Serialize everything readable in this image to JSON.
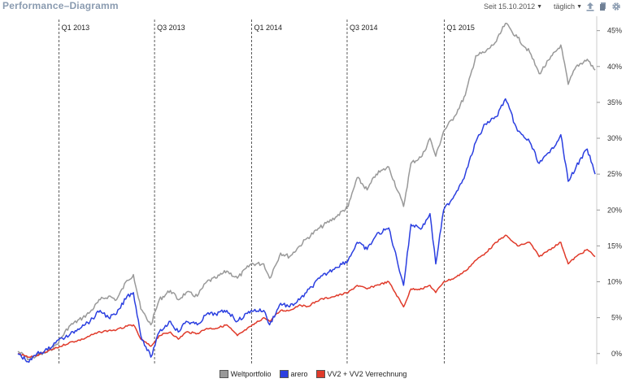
{
  "header": {
    "title": "Performance–Diagramm",
    "since_label": "Seit 15.10.2012",
    "interval_label": "täglich",
    "icons": [
      "upload-icon",
      "document-icon",
      "gear-icon"
    ]
  },
  "colors": {
    "weltportfolio": "#999999",
    "arero": "#2b3fe0",
    "vv2": "#e03a2a",
    "grid": "#333333",
    "axis": "#cccccc"
  },
  "chart_data": {
    "type": "line",
    "title": "",
    "xlabel": "",
    "ylabel": "",
    "x_range": [
      "2012-10-15",
      "2015-10-14"
    ],
    "ylim": [
      -1.5,
      47
    ],
    "y_ticks": [
      0,
      5,
      10,
      15,
      20,
      25,
      30,
      35,
      40,
      45
    ],
    "y_tick_labels": [
      "0%",
      "5%",
      "10%",
      "15%",
      "20%",
      "25%",
      "30%",
      "35%",
      "40%",
      "45%"
    ],
    "y_axis_position": "right",
    "quarter_markers": [
      {
        "label": "Q1 2013",
        "date": "2013-01-01"
      },
      {
        "label": "Q3 2013",
        "date": "2013-07-01"
      },
      {
        "label": "Q1 2014",
        "date": "2014-01-01"
      },
      {
        "label": "Q3 2014",
        "date": "2014-07-01"
      },
      {
        "label": "Q1 2015",
        "date": "2015-01-01"
      }
    ],
    "legend_position": "bottom-center",
    "series": [
      {
        "name": "Weltportfolio",
        "x": [
          "2012-10-15",
          "2012-11-05",
          "2012-11-20",
          "2012-12-10",
          "2012-12-28",
          "2013-01-20",
          "2013-02-15",
          "2013-03-01",
          "2013-03-20",
          "2013-04-05",
          "2013-04-20",
          "2013-05-10",
          "2013-05-22",
          "2013-06-05",
          "2013-06-24",
          "2013-07-10",
          "2013-07-31",
          "2013-08-15",
          "2013-08-30",
          "2013-09-20",
          "2013-10-08",
          "2013-10-25",
          "2013-11-15",
          "2013-12-05",
          "2013-12-31",
          "2014-01-24",
          "2014-02-04",
          "2014-02-25",
          "2014-03-14",
          "2014-04-02",
          "2014-04-15",
          "2014-05-10",
          "2014-06-09",
          "2014-07-03",
          "2014-07-20",
          "2014-08-08",
          "2014-08-25",
          "2014-09-18",
          "2014-10-16",
          "2014-10-30",
          "2014-11-20",
          "2014-12-05",
          "2014-12-16",
          "2014-12-31",
          "2015-01-20",
          "2015-02-10",
          "2015-03-02",
          "2015-03-20",
          "2015-04-10",
          "2015-04-27",
          "2015-05-20",
          "2015-06-12",
          "2015-06-30",
          "2015-07-20",
          "2015-08-10",
          "2015-08-24",
          "2015-09-08",
          "2015-09-29",
          "2015-10-14"
        ],
        "values": [
          0.3,
          -0.8,
          -0.3,
          0.2,
          1.3,
          3.8,
          5.0,
          5.8,
          7.5,
          8.0,
          7.5,
          10.2,
          11.0,
          6.2,
          4.0,
          7.5,
          8.8,
          7.5,
          8.5,
          8.0,
          10.0,
          10.5,
          11.5,
          10.5,
          12.5,
          12.5,
          10.5,
          14.0,
          13.5,
          15.0,
          16.0,
          17.5,
          19.0,
          20.5,
          24.5,
          22.8,
          25.0,
          26.0,
          20.5,
          26.5,
          27.5,
          30.0,
          27.5,
          31.0,
          33.0,
          36.0,
          41.5,
          42.0,
          43.5,
          46.0,
          44.0,
          42.0,
          39.0,
          41.0,
          43.0,
          37.5,
          40.0,
          41.0,
          39.5
        ]
      },
      {
        "name": "arero",
        "x": [
          "2012-10-15",
          "2012-11-05",
          "2012-11-20",
          "2012-12-10",
          "2012-12-28",
          "2013-01-20",
          "2013-02-15",
          "2013-03-01",
          "2013-03-20",
          "2013-04-05",
          "2013-04-20",
          "2013-05-10",
          "2013-05-22",
          "2013-06-05",
          "2013-06-24",
          "2013-07-10",
          "2013-07-31",
          "2013-08-15",
          "2013-08-30",
          "2013-09-20",
          "2013-10-08",
          "2013-10-25",
          "2013-11-15",
          "2013-12-05",
          "2013-12-31",
          "2014-01-24",
          "2014-02-04",
          "2014-02-25",
          "2014-03-14",
          "2014-04-02",
          "2014-04-15",
          "2014-05-10",
          "2014-06-09",
          "2014-07-03",
          "2014-07-20",
          "2014-08-08",
          "2014-08-25",
          "2014-09-18",
          "2014-10-16",
          "2014-10-30",
          "2014-11-20",
          "2014-12-05",
          "2014-12-16",
          "2014-12-31",
          "2015-01-20",
          "2015-02-10",
          "2015-03-02",
          "2015-03-20",
          "2015-04-10",
          "2015-04-27",
          "2015-05-20",
          "2015-06-12",
          "2015-06-30",
          "2015-07-20",
          "2015-08-10",
          "2015-08-24",
          "2015-09-08",
          "2015-09-29",
          "2015-10-14"
        ],
        "values": [
          0.0,
          -1.2,
          0.0,
          0.5,
          1.8,
          2.5,
          4.0,
          4.5,
          6.0,
          5.0,
          5.5,
          8.0,
          8.5,
          2.5,
          -0.5,
          3.0,
          4.5,
          3.0,
          4.5,
          4.0,
          5.5,
          5.5,
          6.0,
          4.5,
          6.0,
          6.0,
          4.0,
          7.0,
          6.5,
          7.5,
          8.5,
          10.5,
          12.0,
          13.0,
          15.5,
          14.5,
          16.5,
          17.5,
          9.5,
          18.0,
          17.5,
          19.5,
          12.5,
          20.0,
          22.0,
          25.0,
          29.5,
          32.0,
          33.0,
          35.5,
          31.0,
          29.5,
          26.5,
          28.0,
          30.5,
          24.0,
          26.0,
          28.5,
          25.0
        ]
      },
      {
        "name": "VV2 + VV2 Verrechnung",
        "x": [
          "2012-10-15",
          "2012-11-05",
          "2012-11-20",
          "2012-12-10",
          "2012-12-28",
          "2013-01-20",
          "2013-02-15",
          "2013-03-01",
          "2013-03-20",
          "2013-04-05",
          "2013-04-20",
          "2013-05-10",
          "2013-05-22",
          "2013-06-05",
          "2013-06-24",
          "2013-07-10",
          "2013-07-31",
          "2013-08-15",
          "2013-08-30",
          "2013-09-20",
          "2013-10-08",
          "2013-10-25",
          "2013-11-15",
          "2013-12-05",
          "2013-12-31",
          "2014-01-24",
          "2014-02-04",
          "2014-02-25",
          "2014-03-14",
          "2014-04-02",
          "2014-04-15",
          "2014-05-10",
          "2014-06-09",
          "2014-07-03",
          "2014-07-20",
          "2014-08-08",
          "2014-08-25",
          "2014-09-18",
          "2014-10-16",
          "2014-10-30",
          "2014-11-20",
          "2014-12-05",
          "2014-12-16",
          "2014-12-31",
          "2015-01-20",
          "2015-02-10",
          "2015-03-02",
          "2015-03-20",
          "2015-04-10",
          "2015-04-27",
          "2015-05-20",
          "2015-06-12",
          "2015-06-30",
          "2015-07-20",
          "2015-08-10",
          "2015-08-24",
          "2015-09-08",
          "2015-09-29",
          "2015-10-14"
        ],
        "values": [
          0.0,
          -0.5,
          -0.3,
          0.3,
          0.8,
          1.5,
          2.0,
          2.5,
          3.0,
          3.2,
          3.3,
          3.8,
          4.0,
          2.0,
          1.0,
          2.5,
          3.0,
          2.0,
          3.0,
          2.8,
          3.5,
          3.5,
          4.0,
          2.5,
          3.8,
          5.0,
          4.5,
          6.0,
          6.0,
          6.8,
          6.5,
          7.5,
          8.0,
          8.5,
          9.5,
          9.0,
          9.5,
          10.0,
          6.5,
          9.0,
          9.0,
          9.5,
          8.5,
          10.0,
          10.5,
          11.5,
          13.0,
          14.0,
          15.5,
          16.5,
          15.0,
          15.5,
          13.5,
          14.5,
          15.5,
          12.5,
          13.5,
          14.5,
          13.5
        ]
      }
    ]
  }
}
